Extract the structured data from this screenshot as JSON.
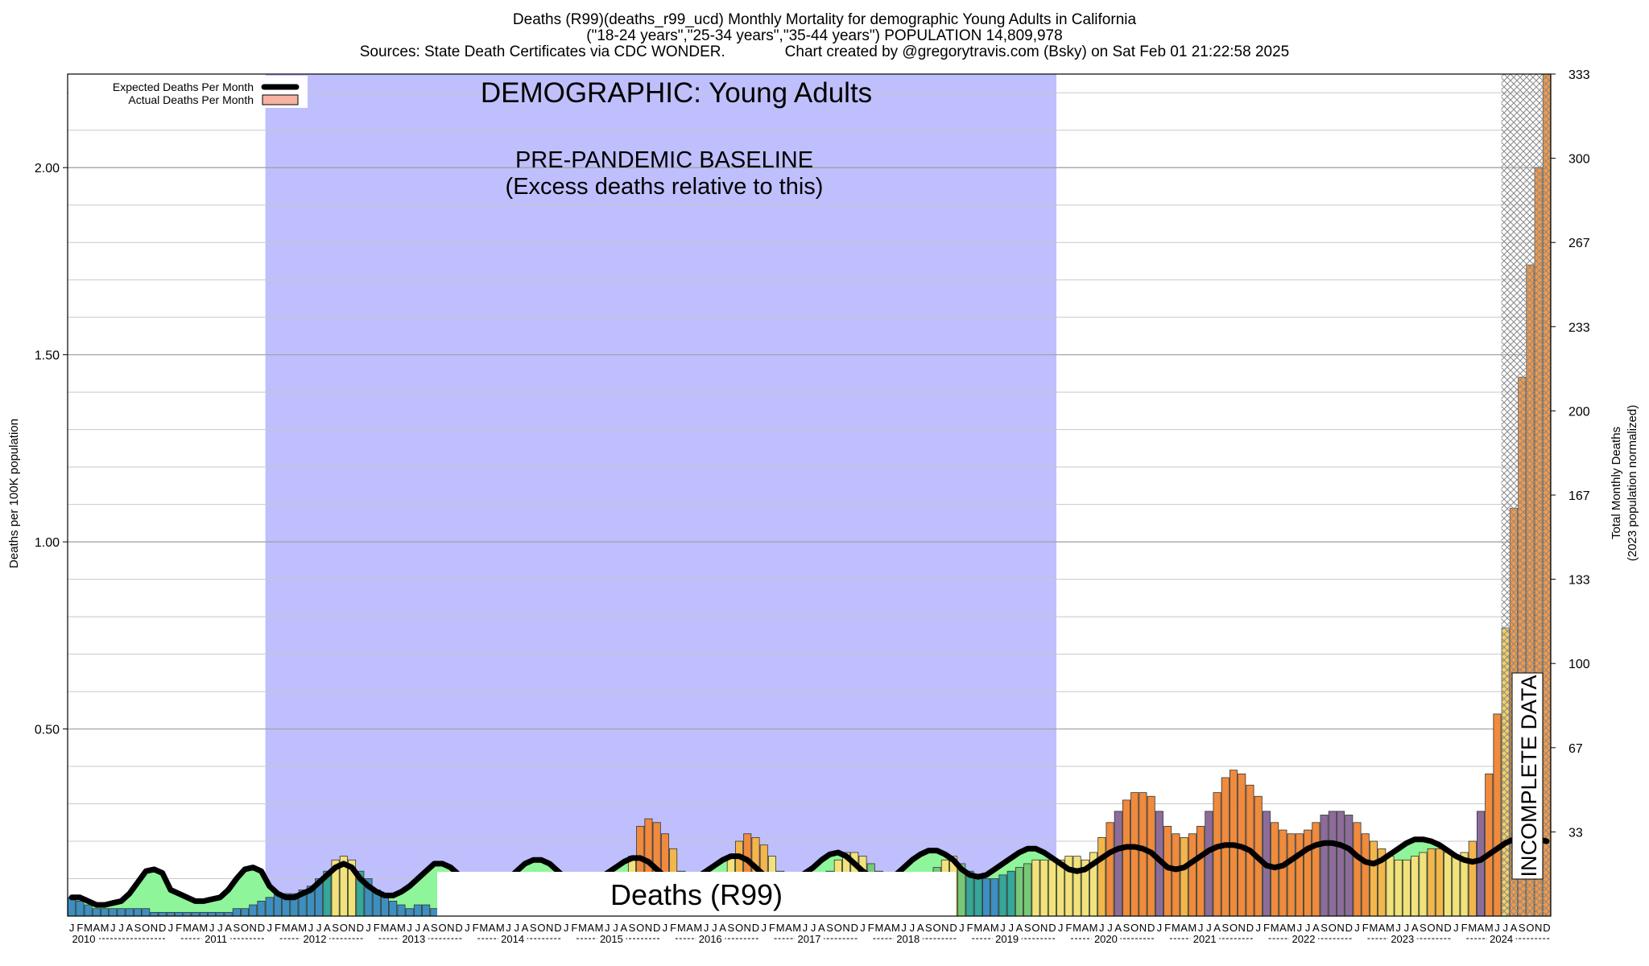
{
  "header": {
    "line1": "Deaths (R99)(deaths_r99_ucd) Monthly Mortality for demographic Young Adults in California",
    "line2": "(\"18-24 years\",\"25-34 years\",\"35-44 years\") POPULATION 14,809,978",
    "line3": "Sources: State Death Certificates via CDC WONDER.              Chart created by @gregorytravis.com (Bsky) on Sat Feb 01 21:22:58 2025"
  },
  "legend": {
    "expected": "Expected Deaths Per Month",
    "actual": "Actual Deaths Per Month"
  },
  "annotations": {
    "demographic": "DEMOGRAPHIC: Young Adults",
    "baseline_line1": "PRE-PANDEMIC BASELINE",
    "baseline_line2": "(Excess deaths relative to this)",
    "cause_label": "Deaths (R99)",
    "incomplete": "INCOMPLETE DATA"
  },
  "colors": {
    "baseline_band": "#bfbffd",
    "expected_line": "#000000",
    "expected_fill": "#8ff59a",
    "incomplete_hatch": "#888888"
  },
  "chart_data": {
    "type": "bar",
    "ylabel": "Deaths per 100K population",
    "y2label_line1": "Total Monthly Deaths",
    "y2label_line2": "(2023 population normalized)",
    "ylim": [
      0,
      2.25
    ],
    "y_ticks": [
      "0.50",
      "1.00",
      "1.50",
      "2.00"
    ],
    "y_tick_values": [
      0.5,
      1.0,
      1.5,
      2.0
    ],
    "y2_ticks": [
      "33",
      "67",
      "100",
      "133",
      "167",
      "200",
      "233",
      "267",
      "300",
      "333"
    ],
    "month_letters": [
      "J",
      "F",
      "M",
      "A",
      "M",
      "J",
      "J",
      "A",
      "S",
      "O",
      "N",
      "D"
    ],
    "years": [
      "2010",
      "2011",
      "2012",
      "2013",
      "2014",
      "2015",
      "2016",
      "2017",
      "2018",
      "2019",
      "2020",
      "2021",
      "2022",
      "2023",
      "2024"
    ],
    "baseline_period": [
      "2012-01",
      "2019-12"
    ],
    "incomplete_period": [
      "2024-07",
      "2024-12"
    ],
    "grid": true,
    "legend_position": "top-left",
    "series": [
      {
        "name": "Actual Deaths Per Month",
        "start": "2010-01",
        "values": [
          0.05,
          0.04,
          0.03,
          0.02,
          0.02,
          0.02,
          0.02,
          0.02,
          0.02,
          0.02,
          0.01,
          0.01,
          0.01,
          0.01,
          0.01,
          0.01,
          0.01,
          0.01,
          0.01,
          0.01,
          0.02,
          0.02,
          0.03,
          0.04,
          0.05,
          0.06,
          0.06,
          0.06,
          0.07,
          0.08,
          0.1,
          0.12,
          0.15,
          0.16,
          0.15,
          0.12,
          0.1,
          0.07,
          0.05,
          0.04,
          0.03,
          0.02,
          0.03,
          0.03,
          0.02,
          0.02,
          0.02,
          0.03,
          0.03,
          0.03,
          0.03,
          0.03,
          0.03,
          0.03,
          0.03,
          0.03,
          0.03,
          0.03,
          0.03,
          0.03,
          0.03,
          0.03,
          0.03,
          0.03,
          0.03,
          0.03,
          0.05,
          0.09,
          0.16,
          0.24,
          0.26,
          0.25,
          0.22,
          0.18,
          0.12,
          0.08,
          0.06,
          0.05,
          0.06,
          0.1,
          0.16,
          0.2,
          0.22,
          0.21,
          0.19,
          0.16,
          0.12,
          0.09,
          0.07,
          0.06,
          0.06,
          0.08,
          0.12,
          0.15,
          0.17,
          0.17,
          0.16,
          0.14,
          0.12,
          0.1,
          0.08,
          0.07,
          0.07,
          0.08,
          0.1,
          0.13,
          0.15,
          0.16,
          0.14,
          0.12,
          0.11,
          0.1,
          0.1,
          0.11,
          0.12,
          0.13,
          0.14,
          0.15,
          0.15,
          0.15,
          0.15,
          0.16,
          0.16,
          0.15,
          0.17,
          0.21,
          0.25,
          0.28,
          0.31,
          0.33,
          0.33,
          0.32,
          0.28,
          0.24,
          0.22,
          0.21,
          0.22,
          0.24,
          0.28,
          0.33,
          0.37,
          0.39,
          0.38,
          0.35,
          0.32,
          0.28,
          0.25,
          0.23,
          0.22,
          0.22,
          0.23,
          0.25,
          0.27,
          0.28,
          0.28,
          0.27,
          0.25,
          0.22,
          0.2,
          0.18,
          0.16,
          0.15,
          0.15,
          0.16,
          0.17,
          0.18,
          0.18,
          0.17,
          0.16,
          0.17,
          0.2,
          0.28,
          0.38,
          0.54,
          0.77,
          1.09,
          1.44,
          1.74,
          2.0,
          2.25
        ]
      },
      {
        "name": "Expected Deaths Per Month",
        "start": "2010-01",
        "values": [
          0.05,
          0.05,
          0.04,
          0.03,
          0.03,
          0.035,
          0.04,
          0.06,
          0.09,
          0.12,
          0.125,
          0.115,
          0.07,
          0.06,
          0.05,
          0.04,
          0.04,
          0.045,
          0.05,
          0.07,
          0.1,
          0.125,
          0.13,
          0.12,
          0.08,
          0.06,
          0.05,
          0.05,
          0.06,
          0.07,
          0.09,
          0.11,
          0.13,
          0.14,
          0.13,
          0.1,
          0.08,
          0.065,
          0.055,
          0.055,
          0.065,
          0.08,
          0.1,
          0.12,
          0.14,
          0.14,
          0.13,
          0.11,
          0.09,
          0.08,
          0.075,
          0.075,
          0.085,
          0.1,
          0.12,
          0.14,
          0.15,
          0.15,
          0.14,
          0.12,
          0.1,
          0.09,
          0.085,
          0.09,
          0.1,
          0.115,
          0.13,
          0.145,
          0.155,
          0.155,
          0.145,
          0.125,
          0.105,
          0.095,
          0.09,
          0.095,
          0.105,
          0.12,
          0.135,
          0.15,
          0.16,
          0.16,
          0.15,
          0.13,
          0.11,
          0.1,
          0.09,
          0.09,
          0.1,
          0.115,
          0.13,
          0.15,
          0.165,
          0.17,
          0.16,
          0.14,
          0.12,
          0.105,
          0.095,
          0.095,
          0.11,
          0.13,
          0.15,
          0.165,
          0.175,
          0.175,
          0.165,
          0.15,
          0.125,
          0.11,
          0.105,
          0.11,
          0.125,
          0.14,
          0.155,
          0.17,
          0.18,
          0.18,
          0.17,
          0.155,
          0.14,
          0.125,
          0.12,
          0.125,
          0.14,
          0.155,
          0.17,
          0.18,
          0.185,
          0.185,
          0.18,
          0.17,
          0.15,
          0.13,
          0.125,
          0.13,
          0.145,
          0.16,
          0.175,
          0.185,
          0.19,
          0.19,
          0.185,
          0.175,
          0.155,
          0.135,
          0.13,
          0.135,
          0.15,
          0.165,
          0.18,
          0.19,
          0.195,
          0.195,
          0.19,
          0.18,
          0.16,
          0.145,
          0.14,
          0.15,
          0.165,
          0.18,
          0.195,
          0.205,
          0.205,
          0.2,
          0.19,
          0.175,
          0.16,
          0.15,
          0.145,
          0.15,
          0.165,
          0.18,
          0.195,
          0.205,
          0.21,
          0.21,
          0.205,
          0.2
        ]
      }
    ]
  }
}
